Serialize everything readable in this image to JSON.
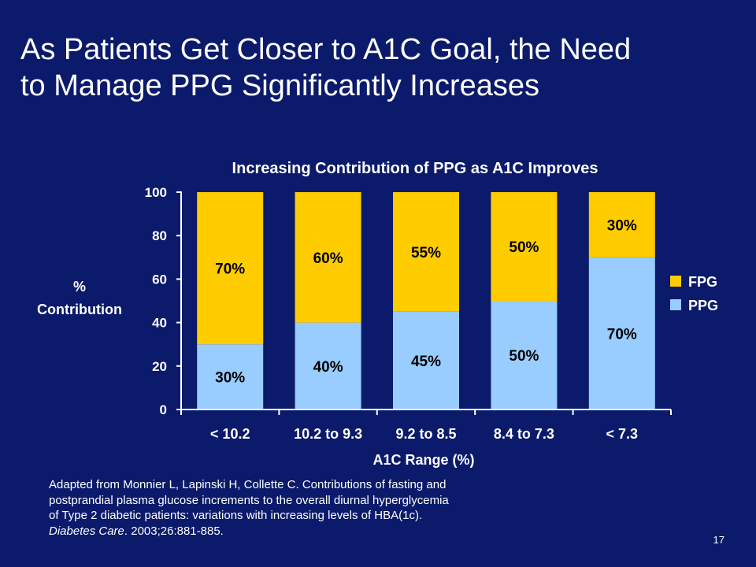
{
  "slide": {
    "title_line1": "As Patients Get Closer to A1C Goal, the Need",
    "title_line2": "to Manage PPG Significantly Increases",
    "citation_line1": "Adapted from Monnier L, Lapinski H, Collette C. Contributions of fasting and",
    "citation_line2": "postprandial plasma glucose increments to the overall diurnal hyperglycemia",
    "citation_line3": "of Type 2 diabetic patients:  variations with increasing levels of HBA(1c).",
    "citation_journal": "Diabetes Care",
    "citation_rest": ". 2003;26:881-885.",
    "page_number": "17"
  },
  "colors": {
    "background": "#0b1a6b",
    "fpg": "#ffcc00",
    "ppg": "#99ccff",
    "text": "#ffffff"
  },
  "chart_data": {
    "type": "bar",
    "stacked": true,
    "title": "Increasing Contribution of PPG as A1C Improves",
    "ylabel_line1": "%",
    "ylabel_line2": "Contribution",
    "xlabel": "A1C Range (%)",
    "ylim": [
      0,
      100
    ],
    "yticks": [
      0,
      20,
      40,
      60,
      80,
      100
    ],
    "categories": [
      "< 10.2",
      "10.2 to 9.3",
      "9.2 to 8.5",
      "8.4 to 7.3",
      "< 7.3"
    ],
    "series": [
      {
        "name": "PPG",
        "color": "#99ccff",
        "values": [
          30,
          40,
          45,
          50,
          70
        ],
        "labels": [
          "30%",
          "40%",
          "45%",
          "50%",
          "70%"
        ]
      },
      {
        "name": "FPG",
        "color": "#ffcc00",
        "values": [
          70,
          60,
          55,
          50,
          30
        ],
        "labels": [
          "70%",
          "60%",
          "55%",
          "50%",
          "30%"
        ]
      }
    ],
    "legend_order": [
      "FPG",
      "PPG"
    ],
    "legend_position": "right",
    "grid": false
  }
}
